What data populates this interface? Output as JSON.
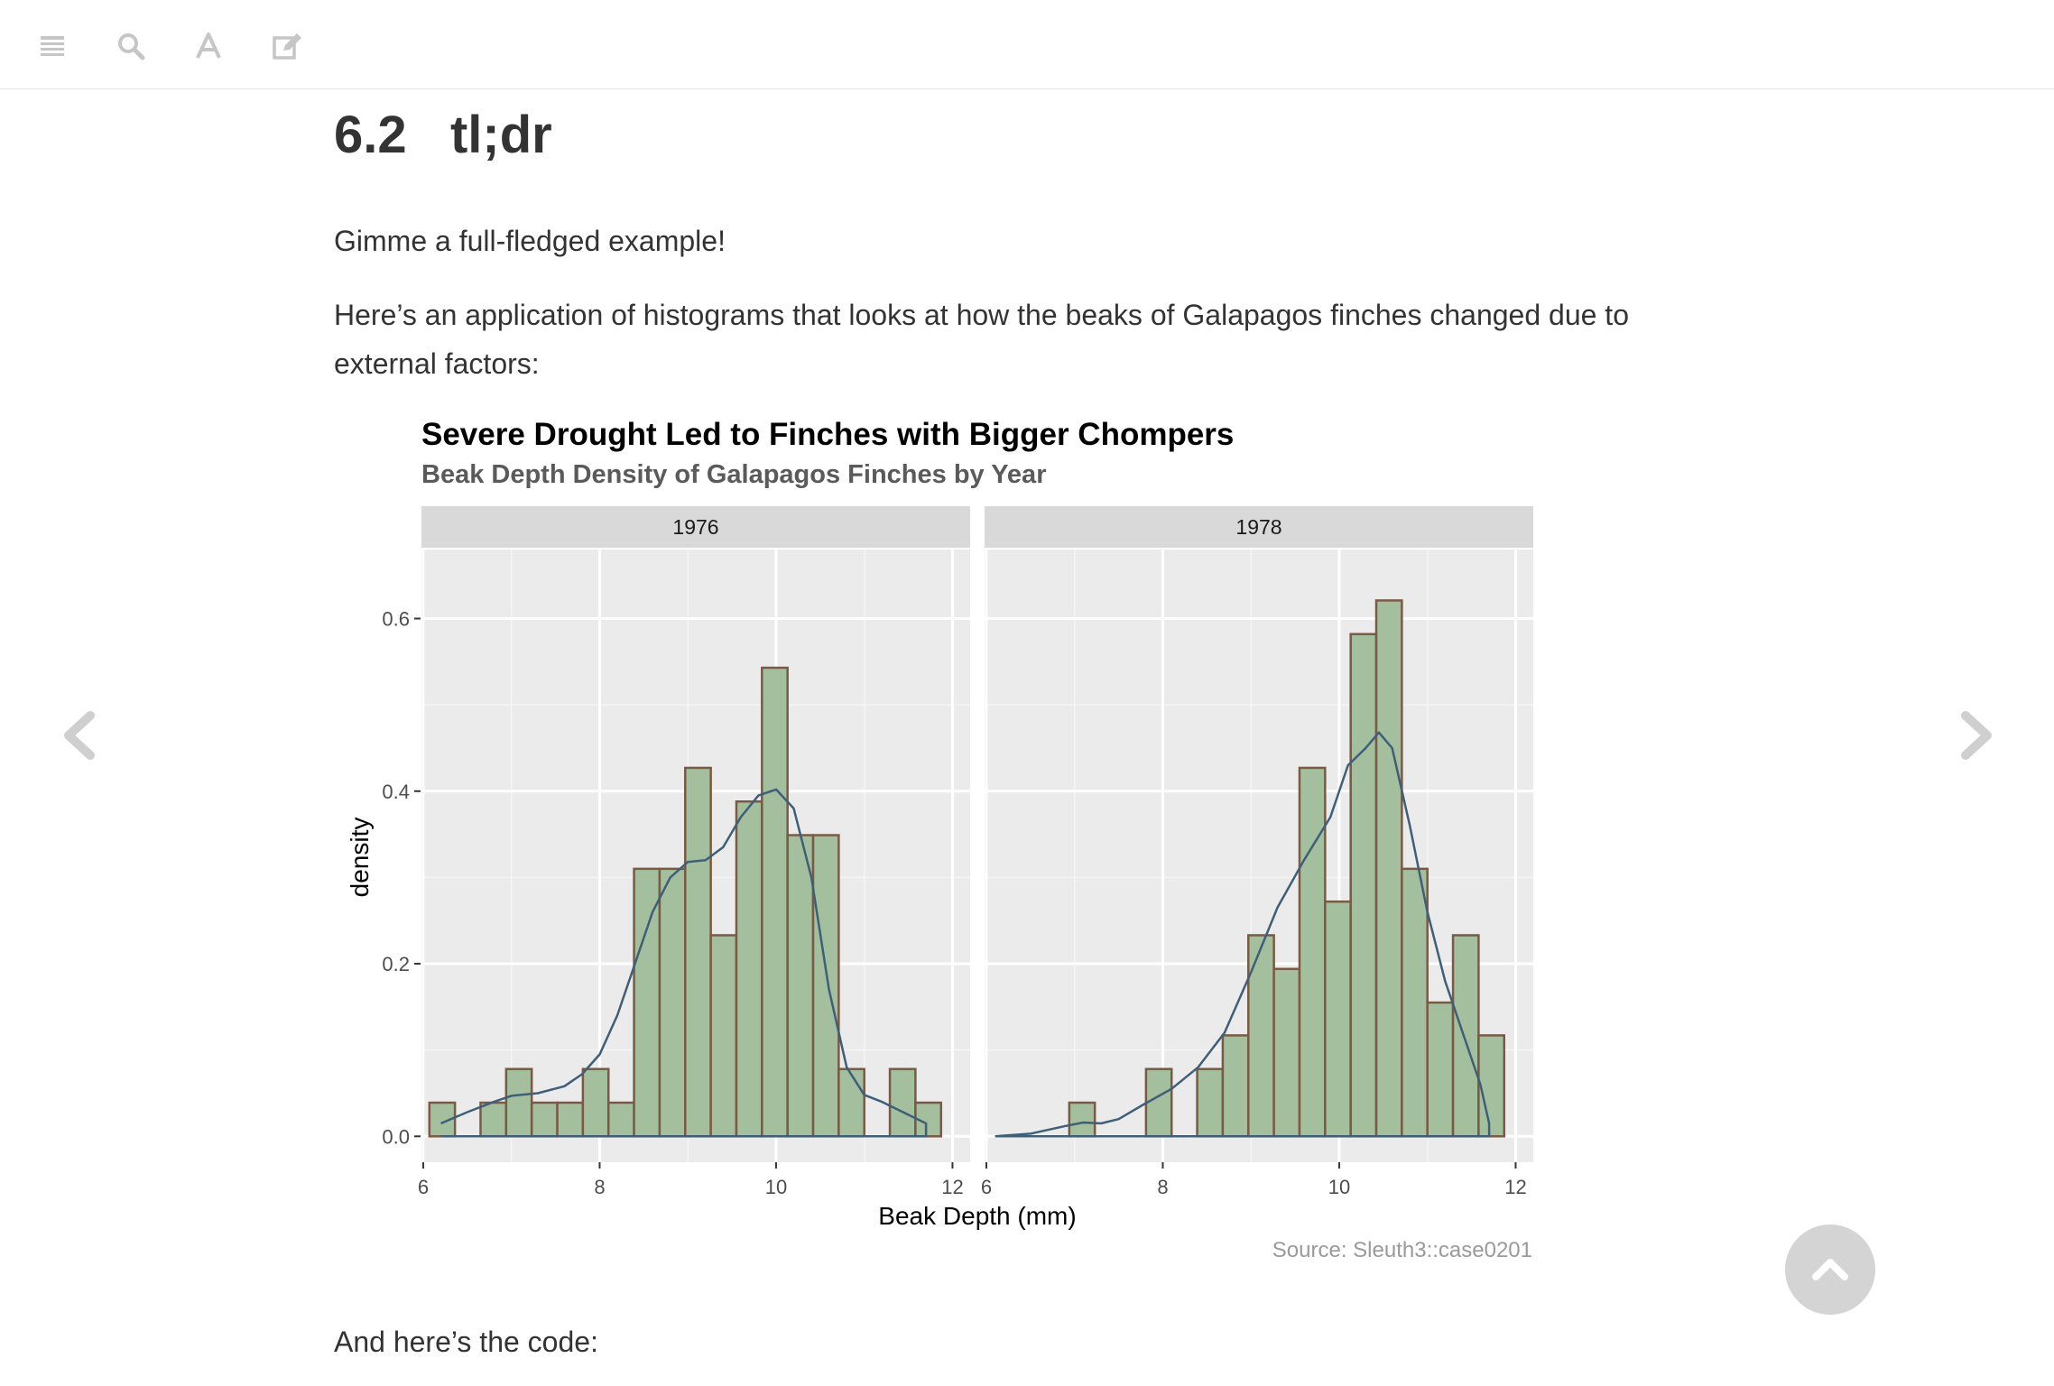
{
  "toolbar": {
    "buttons": [
      {
        "name": "menu-icon",
        "label": "Toggle Sidebar"
      },
      {
        "name": "search-icon",
        "label": "Search"
      },
      {
        "name": "font-icon",
        "label": "Font Settings"
      },
      {
        "name": "edit-icon",
        "label": "Edit"
      }
    ]
  },
  "section": {
    "number": "6.2",
    "title": "tl;dr"
  },
  "paragraphs": {
    "p1": "Gimme a full-fledged example!",
    "p2_line1": "Here’s an application of histograms that looks at how the beaks of Galapagos finches changed due to",
    "p2_line2": "external factors:",
    "p3": "And here’s the code:"
  },
  "colors": {
    "bar_fill": "#a3bf9d",
    "bar_stroke": "#7a5a45",
    "density_line": "#3f5f78",
    "panel_bg": "#ebebeb",
    "strip_bg": "#d9d9d9",
    "nav_icon": "#cfcfcf"
  },
  "chart_data": {
    "type": "bar",
    "title": "Severe Drought Led to Finches with Bigger Chompers",
    "subtitle": "Beak Depth Density of Galapagos Finches by Year",
    "xlabel": "Beak Depth (mm)",
    "ylabel": "density",
    "caption": "Source: Sleuth3::case0201",
    "xlim": [
      5.98,
      12.2
    ],
    "ylim": [
      -0.03,
      0.68
    ],
    "x_ticks": [
      6,
      8,
      10,
      12
    ],
    "y_ticks": [
      0.0,
      0.2,
      0.4,
      0.6
    ],
    "y_tick_labels": [
      "0.0",
      "0.2",
      "0.4",
      "0.6"
    ],
    "bin_width": 0.29,
    "grid": true,
    "panels": [
      {
        "label": "1976",
        "bin_starts": [
          6.07,
          6.36,
          6.65,
          6.94,
          7.23,
          7.52,
          7.81,
          8.1,
          8.39,
          8.68,
          8.97,
          9.26,
          9.55,
          9.84,
          10.13,
          10.42,
          10.71,
          11.0,
          11.29,
          11.58
        ],
        "values": [
          0.039,
          0.0,
          0.039,
          0.078,
          0.039,
          0.039,
          0.078,
          0.039,
          0.31,
          0.31,
          0.427,
          0.233,
          0.388,
          0.543,
          0.349,
          0.349,
          0.078,
          0.0,
          0.078,
          0.039
        ],
        "density_curve": {
          "x": [
            6.2,
            6.5,
            6.8,
            7.0,
            7.3,
            7.6,
            7.8,
            8.0,
            8.2,
            8.4,
            8.6,
            8.8,
            9.0,
            9.2,
            9.4,
            9.6,
            9.8,
            10.0,
            10.2,
            10.4,
            10.6,
            10.8,
            11.0,
            11.2,
            11.4,
            11.7
          ],
          "y": [
            0.015,
            0.028,
            0.04,
            0.047,
            0.05,
            0.058,
            0.072,
            0.095,
            0.14,
            0.2,
            0.26,
            0.3,
            0.318,
            0.32,
            0.335,
            0.37,
            0.395,
            0.402,
            0.38,
            0.3,
            0.17,
            0.08,
            0.048,
            0.04,
            0.03,
            0.015
          ]
        }
      },
      {
        "label": "1978",
        "bin_starts": [
          6.07,
          6.36,
          6.65,
          6.94,
          7.23,
          7.52,
          7.81,
          8.1,
          8.39,
          8.68,
          8.97,
          9.26,
          9.55,
          9.84,
          10.13,
          10.42,
          10.71,
          11.0,
          11.29,
          11.58
        ],
        "values": [
          0.0,
          0.0,
          0.0,
          0.039,
          0.0,
          0.0,
          0.078,
          0.0,
          0.078,
          0.117,
          0.233,
          0.194,
          0.427,
          0.272,
          0.582,
          0.621,
          0.31,
          0.155,
          0.233,
          0.117
        ],
        "density_curve": {
          "x": [
            6.1,
            6.5,
            6.9,
            7.1,
            7.3,
            7.5,
            7.8,
            8.1,
            8.4,
            8.7,
            9.0,
            9.3,
            9.6,
            9.9,
            10.1,
            10.3,
            10.45,
            10.6,
            10.8,
            11.0,
            11.2,
            11.4,
            11.6,
            11.7
          ],
          "y": [
            0.0,
            0.003,
            0.012,
            0.016,
            0.015,
            0.02,
            0.038,
            0.055,
            0.08,
            0.12,
            0.19,
            0.265,
            0.32,
            0.37,
            0.43,
            0.45,
            0.468,
            0.45,
            0.36,
            0.26,
            0.18,
            0.12,
            0.06,
            0.015
          ]
        }
      }
    ]
  }
}
